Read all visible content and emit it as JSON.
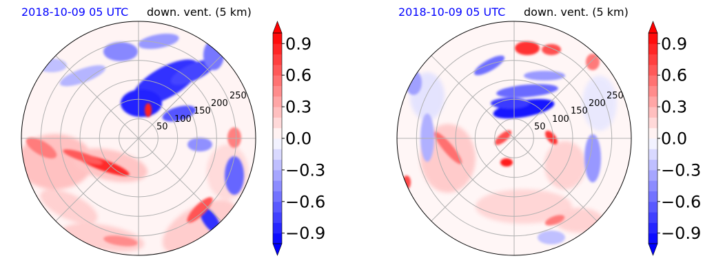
{
  "chart_data": [
    {
      "type": "heatmap",
      "projection": "polar",
      "title_left": "2018-10-09 05 UTC",
      "title_right": "down. vent. (5 km)",
      "radial_ticks": [
        50,
        100,
        150,
        200,
        250
      ],
      "colorbar": {
        "cmap": "bwr",
        "ticks": [
          -0.9,
          -0.6,
          -0.3,
          0.0,
          0.3,
          0.6,
          0.9
        ],
        "tick_labels": [
          "−0.9",
          "−0.6",
          "−0.3",
          "0.0",
          "0.3",
          "0.6",
          "0.9"
        ],
        "vmin": -1.0,
        "vmax": 1.0,
        "extend": "both"
      }
    },
    {
      "type": "heatmap",
      "projection": "polar",
      "title_left": "2018-10-09 05 UTC",
      "title_right": "down. vent. (5 km)",
      "radial_ticks": [
        50,
        100,
        150,
        200,
        250
      ],
      "colorbar": {
        "cmap": "bwr",
        "ticks": [
          -0.9,
          -0.6,
          -0.3,
          0.0,
          0.3,
          0.6,
          0.9
        ],
        "tick_labels": [
          "−0.9",
          "−0.6",
          "−0.3",
          "0.0",
          "0.3",
          "0.6",
          "0.9"
        ],
        "vmin": -1.0,
        "vmax": 1.0,
        "extend": "both"
      }
    }
  ],
  "colors": {
    "positive": "#ff0000",
    "negative": "#0000ff",
    "neutral": "#ffffff",
    "title_date": "#0000ff"
  }
}
